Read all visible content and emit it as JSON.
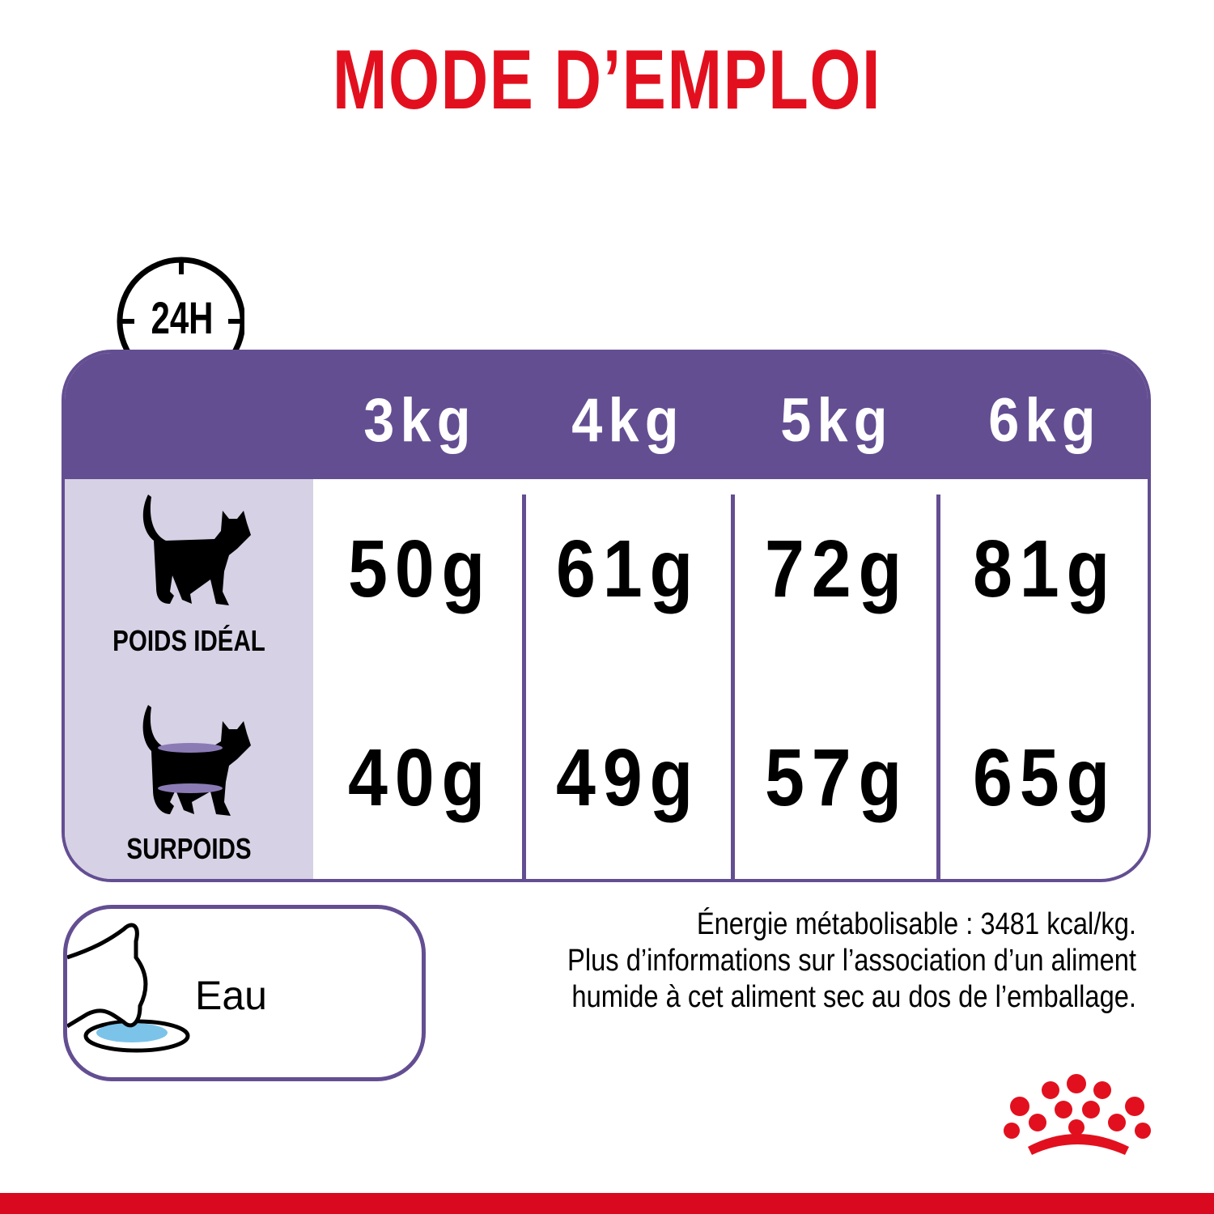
{
  "title": "MODE D’EMPLOI",
  "clock_label": "24H",
  "table": {
    "columns": [
      "3kg",
      "4kg",
      "5kg",
      "6kg"
    ],
    "rows": [
      {
        "label": "POIDS IDÉAL",
        "values": [
          "50g",
          "61g",
          "72g",
          "81g"
        ]
      },
      {
        "label": "SURPOIDS",
        "values": [
          "40g",
          "49g",
          "57g",
          "65g"
        ]
      }
    ]
  },
  "water": {
    "label": "Eau"
  },
  "info": {
    "line1": "Énergie métabolisable : 3481 kcal/kg.",
    "line2": "Plus d’informations sur l’association d’un aliment",
    "line3": "humide à cet aliment sec au dos de l’emballage."
  },
  "colors": {
    "accent": "#e2101e",
    "purple": "#634e92",
    "lavender": "#d6d1e4",
    "water": "#7cc3ea"
  }
}
